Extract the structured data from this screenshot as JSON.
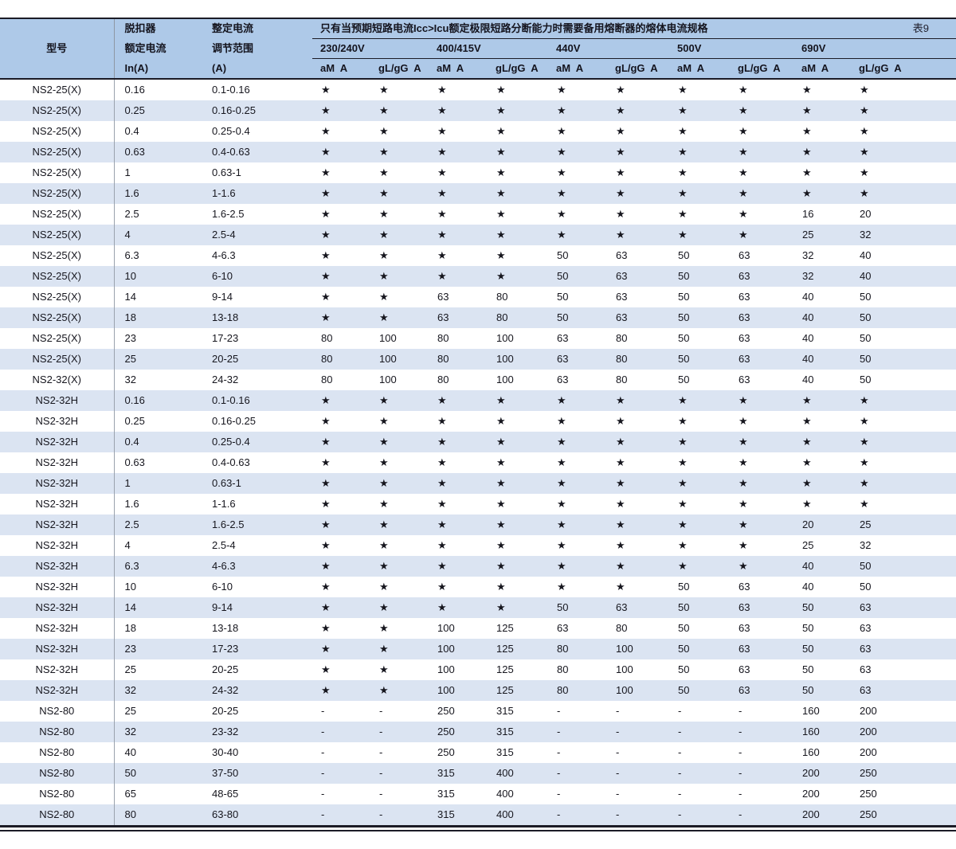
{
  "page": {
    "table_tag": "表9"
  },
  "header": {
    "col_model": "型号",
    "col_trip_lines": [
      "脱扣器",
      "额定电流",
      "In(A)"
    ],
    "col_range_lines": [
      "整定电流",
      "调节范围",
      "(A)"
    ],
    "fuse_note": "只有当预期短路电流Icc>Icu额定极限短路分断能力时需要备用熔断器的熔体电流规格",
    "voltages": [
      "230/240V",
      "400/415V",
      "440V",
      "500V",
      "690V"
    ],
    "sub_headers": {
      "am": "aM  A",
      "gl": "gL/gG  A"
    }
  },
  "symbols": {
    "star": "★",
    "dash": "-"
  },
  "colors": {
    "header_bg": "#aec9e8",
    "stripe_bg": "#dbe4f2",
    "border_dark": "#1b1b26",
    "divider_gray": "#9aa2ad"
  },
  "rows": [
    {
      "model": "NS2-25(X)",
      "rated": "0.16",
      "range": "0.1-0.16",
      "values": [
        "★",
        "★",
        "★",
        "★",
        "★",
        "★",
        "★",
        "★",
        "★",
        "★"
      ]
    },
    {
      "model": "NS2-25(X)",
      "rated": "0.25",
      "range": "0.16-0.25",
      "values": [
        "★",
        "★",
        "★",
        "★",
        "★",
        "★",
        "★",
        "★",
        "★",
        "★"
      ]
    },
    {
      "model": "NS2-25(X)",
      "rated": "0.4",
      "range": "0.25-0.4",
      "values": [
        "★",
        "★",
        "★",
        "★",
        "★",
        "★",
        "★",
        "★",
        "★",
        "★"
      ]
    },
    {
      "model": "NS2-25(X)",
      "rated": "0.63",
      "range": "0.4-0.63",
      "values": [
        "★",
        "★",
        "★",
        "★",
        "★",
        "★",
        "★",
        "★",
        "★",
        "★"
      ]
    },
    {
      "model": "NS2-25(X)",
      "rated": "1",
      "range": "0.63-1",
      "values": [
        "★",
        "★",
        "★",
        "★",
        "★",
        "★",
        "★",
        "★",
        "★",
        "★"
      ]
    },
    {
      "model": "NS2-25(X)",
      "rated": "1.6",
      "range": "1-1.6",
      "values": [
        "★",
        "★",
        "★",
        "★",
        "★",
        "★",
        "★",
        "★",
        "★",
        "★"
      ]
    },
    {
      "model": "NS2-25(X)",
      "rated": "2.5",
      "range": "1.6-2.5",
      "values": [
        "★",
        "★",
        "★",
        "★",
        "★",
        "★",
        "★",
        "★",
        "16",
        "20"
      ]
    },
    {
      "model": "NS2-25(X)",
      "rated": "4",
      "range": "2.5-4",
      "values": [
        "★",
        "★",
        "★",
        "★",
        "★",
        "★",
        "★",
        "★",
        "25",
        "32"
      ]
    },
    {
      "model": "NS2-25(X)",
      "rated": "6.3",
      "range": "4-6.3",
      "values": [
        "★",
        "★",
        "★",
        "★",
        "50",
        "63",
        "50",
        "63",
        "32",
        "40"
      ]
    },
    {
      "model": "NS2-25(X)",
      "rated": "10",
      "range": "6-10",
      "values": [
        "★",
        "★",
        "★",
        "★",
        "50",
        "63",
        "50",
        "63",
        "32",
        "40"
      ]
    },
    {
      "model": "NS2-25(X)",
      "rated": "14",
      "range": "9-14",
      "values": [
        "★",
        "★",
        "63",
        "80",
        "50",
        "63",
        "50",
        "63",
        "40",
        "50"
      ]
    },
    {
      "model": "NS2-25(X)",
      "rated": "18",
      "range": "13-18",
      "values": [
        "★",
        "★",
        "63",
        "80",
        "50",
        "63",
        "50",
        "63",
        "40",
        "50"
      ]
    },
    {
      "model": "NS2-25(X)",
      "rated": "23",
      "range": "17-23",
      "values": [
        "80",
        "100",
        "80",
        "100",
        "63",
        "80",
        "50",
        "63",
        "40",
        "50"
      ]
    },
    {
      "model": "NS2-25(X)",
      "rated": "25",
      "range": "20-25",
      "values": [
        "80",
        "100",
        "80",
        "100",
        "63",
        "80",
        "50",
        "63",
        "40",
        "50"
      ]
    },
    {
      "model": "NS2-32(X)",
      "rated": "32",
      "range": "24-32",
      "values": [
        "80",
        "100",
        "80",
        "100",
        "63",
        "80",
        "50",
        "63",
        "40",
        "50"
      ]
    },
    {
      "model": "NS2-32H",
      "rated": "0.16",
      "range": "0.1-0.16",
      "values": [
        "★",
        "★",
        "★",
        "★",
        "★",
        "★",
        "★",
        "★",
        "★",
        "★"
      ]
    },
    {
      "model": "NS2-32H",
      "rated": "0.25",
      "range": "0.16-0.25",
      "values": [
        "★",
        "★",
        "★",
        "★",
        "★",
        "★",
        "★",
        "★",
        "★",
        "★"
      ]
    },
    {
      "model": "NS2-32H",
      "rated": "0.4",
      "range": "0.25-0.4",
      "values": [
        "★",
        "★",
        "★",
        "★",
        "★",
        "★",
        "★",
        "★",
        "★",
        "★"
      ]
    },
    {
      "model": "NS2-32H",
      "rated": "0.63",
      "range": "0.4-0.63",
      "values": [
        "★",
        "★",
        "★",
        "★",
        "★",
        "★",
        "★",
        "★",
        "★",
        "★"
      ]
    },
    {
      "model": "NS2-32H",
      "rated": "1",
      "range": "0.63-1",
      "values": [
        "★",
        "★",
        "★",
        "★",
        "★",
        "★",
        "★",
        "★",
        "★",
        "★"
      ]
    },
    {
      "model": "NS2-32H",
      "rated": "1.6",
      "range": "1-1.6",
      "values": [
        "★",
        "★",
        "★",
        "★",
        "★",
        "★",
        "★",
        "★",
        "★",
        "★"
      ]
    },
    {
      "model": "NS2-32H",
      "rated": "2.5",
      "range": "1.6-2.5",
      "values": [
        "★",
        "★",
        "★",
        "★",
        "★",
        "★",
        "★",
        "★",
        "20",
        "25"
      ]
    },
    {
      "model": "NS2-32H",
      "rated": "4",
      "range": "2.5-4",
      "values": [
        "★",
        "★",
        "★",
        "★",
        "★",
        "★",
        "★",
        "★",
        "25",
        "32"
      ]
    },
    {
      "model": "NS2-32H",
      "rated": "6.3",
      "range": "4-6.3",
      "values": [
        "★",
        "★",
        "★",
        "★",
        "★",
        "★",
        "★",
        "★",
        "40",
        "50"
      ]
    },
    {
      "model": "NS2-32H",
      "rated": "10",
      "range": "6-10",
      "values": [
        "★",
        "★",
        "★",
        "★",
        "★",
        "★",
        "50",
        "63",
        "40",
        "50"
      ]
    },
    {
      "model": "NS2-32H",
      "rated": "14",
      "range": "9-14",
      "values": [
        "★",
        "★",
        "★",
        "★",
        "50",
        "63",
        "50",
        "63",
        "50",
        "63"
      ]
    },
    {
      "model": "NS2-32H",
      "rated": "18",
      "range": "13-18",
      "values": [
        "★",
        "★",
        "100",
        "125",
        "63",
        "80",
        "50",
        "63",
        "50",
        "63"
      ]
    },
    {
      "model": "NS2-32H",
      "rated": "23",
      "range": "17-23",
      "values": [
        "★",
        "★",
        "100",
        "125",
        "80",
        "100",
        "50",
        "63",
        "50",
        "63"
      ]
    },
    {
      "model": "NS2-32H",
      "rated": "25",
      "range": "20-25",
      "values": [
        "★",
        "★",
        "100",
        "125",
        "80",
        "100",
        "50",
        "63",
        "50",
        "63"
      ]
    },
    {
      "model": "NS2-32H",
      "rated": "32",
      "range": "24-32",
      "values": [
        "★",
        "★",
        "100",
        "125",
        "80",
        "100",
        "50",
        "63",
        "50",
        "63"
      ]
    },
    {
      "model": "NS2-80",
      "rated": "25",
      "range": "20-25",
      "values": [
        "-",
        "-",
        "250",
        "315",
        "-",
        "-",
        "-",
        "-",
        "160",
        "200"
      ]
    },
    {
      "model": "NS2-80",
      "rated": "32",
      "range": "23-32",
      "values": [
        "-",
        "-",
        "250",
        "315",
        "-",
        "-",
        "-",
        "-",
        "160",
        "200"
      ]
    },
    {
      "model": "NS2-80",
      "rated": "40",
      "range": "30-40",
      "values": [
        "-",
        "-",
        "250",
        "315",
        "-",
        "-",
        "-",
        "-",
        "160",
        "200"
      ]
    },
    {
      "model": "NS2-80",
      "rated": "50",
      "range": "37-50",
      "values": [
        "-",
        "-",
        "315",
        "400",
        "-",
        "-",
        "-",
        "-",
        "200",
        "250"
      ]
    },
    {
      "model": "NS2-80",
      "rated": "65",
      "range": "48-65",
      "values": [
        "-",
        "-",
        "315",
        "400",
        "-",
        "-",
        "-",
        "-",
        "200",
        "250"
      ]
    },
    {
      "model": "NS2-80",
      "rated": "80",
      "range": "63-80",
      "values": [
        "-",
        "-",
        "315",
        "400",
        "-",
        "-",
        "-",
        "-",
        "200",
        "250"
      ]
    }
  ]
}
